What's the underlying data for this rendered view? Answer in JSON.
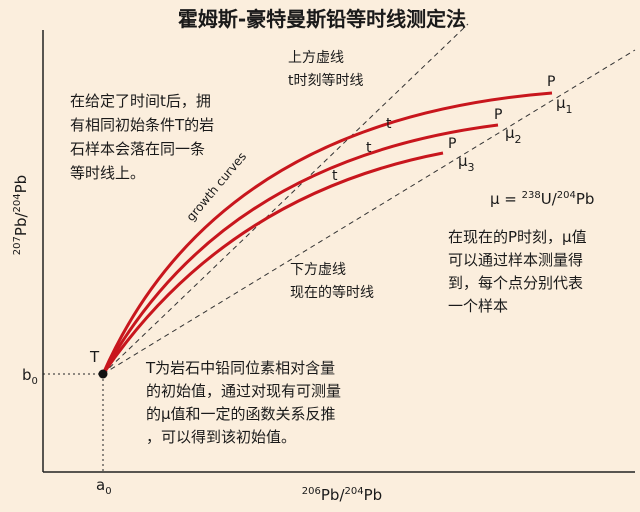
{
  "title": "霍姆斯-豪特曼斯铅等时线测定法",
  "y_label": [
    "207",
    "Pb/",
    "204",
    "Pb"
  ],
  "x_label": [
    "206",
    "Pb/",
    "204",
    "Pb"
  ],
  "b0": [
    "b",
    "0"
  ],
  "a0": [
    "a",
    "0"
  ],
  "upper_line_label": [
    "上方虚线",
    "t时刻等时线"
  ],
  "lower_line_label": [
    "下方虚线",
    "现在的等时线"
  ],
  "left_note": [
    "在给定了时间t后，拥",
    "有相同初始条件T的岩",
    "石样本会落在同一条",
    "等时线上。"
  ],
  "growth_label": "growth curves",
  "origin_label": "T",
  "t_labels": [
    "t",
    "t",
    "t"
  ],
  "p_labels": [
    "P",
    "P",
    "P"
  ],
  "mu_labels": [
    [
      "μ",
      "1"
    ],
    [
      "μ",
      "2"
    ],
    [
      "μ",
      "3"
    ]
  ],
  "formula": [
    "μ = ",
    "238",
    "U/",
    "204",
    "Pb"
  ],
  "right_note": [
    "在现在的P时刻，μ值",
    "可以通过样本测量得",
    "到，每个点分别代表",
    "一个样本"
  ],
  "bottom_note": [
    "T为岩石中铅同位素相对含量",
    "的初始值，通过对现有可测量",
    "的μ值和一定的函数关系反推",
    "，可以得到该初始值。"
  ]
}
